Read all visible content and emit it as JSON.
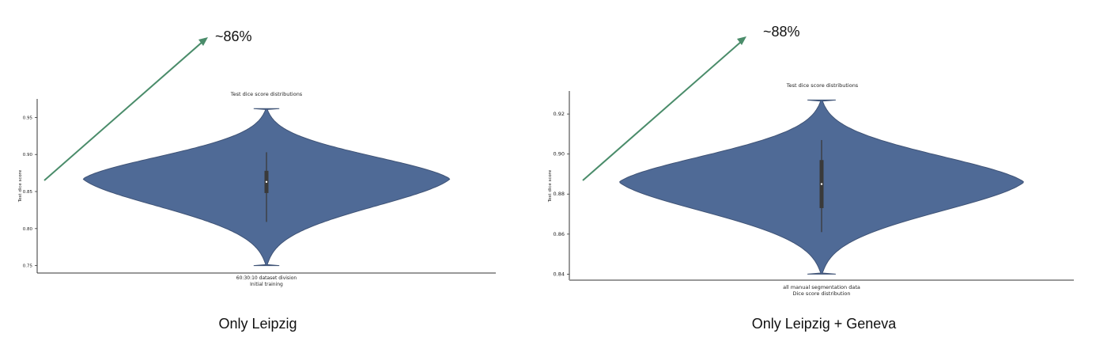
{
  "colors": {
    "violin": "#4f6a96",
    "violin_edge": "#3f5376",
    "arrow": "#4a8c6a",
    "axis": "#333333",
    "box": "#3a3a3a"
  },
  "chart_data": [
    {
      "type": "violin",
      "title": "Test dice score distributions",
      "xlabel_line1": "60:30:10 dataset division",
      "xlabel_line2": "Initial training",
      "ylabel": "Test dice score",
      "ylim": [
        0.74,
        0.975
      ],
      "yticks": [
        0.95,
        0.9,
        0.85,
        0.8,
        0.75
      ],
      "ytick_labels": [
        "0.95",
        "0.90",
        "0.85",
        "0.80",
        "0.75"
      ],
      "distribution": {
        "min": 0.75,
        "max": 0.962,
        "mode": 0.867,
        "q1": 0.848,
        "median": 0.863,
        "q3": 0.878,
        "whisker_low": 0.809,
        "whisker_high": 0.903
      },
      "annotation": "~86%",
      "caption": "Only Leipzig"
    },
    {
      "type": "violin",
      "title": "Test dice score distributions",
      "xlabel_line1": "all manual segmentation data",
      "xlabel_line2": "Dice score distribution",
      "ylabel": "Test dice score",
      "ylim": [
        0.837,
        0.9315
      ],
      "yticks": [
        0.92,
        0.9,
        0.88,
        0.86,
        0.84
      ],
      "ytick_labels": [
        "0.92",
        "0.90",
        "0.88",
        "0.86",
        "0.84"
      ],
      "distribution": {
        "min": 0.84,
        "max": 0.927,
        "mode": 0.886,
        "q1": 0.873,
        "median": 0.885,
        "q3": 0.897,
        "whisker_low": 0.861,
        "whisker_high": 0.907
      },
      "annotation": "~88%",
      "caption": "Only Leipzig + Geneva"
    }
  ]
}
